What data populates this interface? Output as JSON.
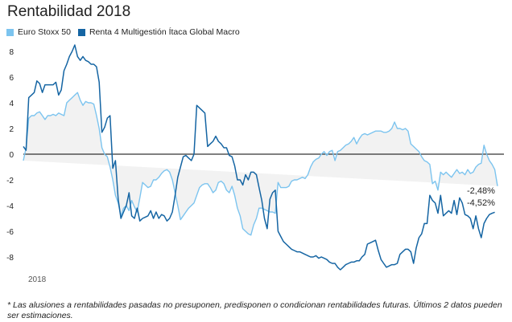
{
  "title": "Rentabilidad 2018",
  "footnote": "* Las alusiones a rentabilidades pasadas no presuponen, predisponen o condicionan rentabilidades futuras. Últimos 2 datos pueden ser estimaciones.",
  "chart_data": {
    "type": "line",
    "title": "Rentabilidad 2018",
    "xlabel": "",
    "ylabel": "",
    "x_tick_labels": [
      "2018"
    ],
    "ylim": [
      -9.5,
      9
    ],
    "yticks": [
      -8,
      -6,
      -4,
      -2,
      0,
      2,
      4,
      6,
      8
    ],
    "grid": false,
    "legend_position": "top-left",
    "fill_between_series": true,
    "end_labels": [
      "-2,48%",
      "-4,52%"
    ],
    "colors": {
      "fill": "#f2f2f2",
      "zero_line": "#000000",
      "text": "#222222"
    },
    "series": [
      {
        "name": "Euro Stoxx 50",
        "color": "#7cc4ef",
        "values": [
          -0.5,
          0.5,
          2.8,
          3.0,
          3.0,
          3.2,
          3.3,
          3.0,
          2.7,
          3.0,
          3.0,
          3.1,
          3.0,
          3.2,
          3.1,
          3.0,
          4.0,
          4.2,
          4.4,
          4.6,
          4.8,
          4.2,
          3.8,
          4.1,
          4.0,
          4.0,
          3.9,
          3.0,
          2.0,
          0.5,
          0.0,
          -0.2,
          -1.0,
          -2.0,
          -3.2,
          -3.8,
          -4.8,
          -4.2,
          -4.0,
          -4.4,
          -3.6,
          -4.1,
          -4.5,
          -3.4,
          -2.2,
          -2.4,
          -2.6,
          -2.5,
          -2.0,
          -2.0,
          -1.8,
          -1.5,
          -1.3,
          -1.2,
          -1.4,
          -2.0,
          -3.0,
          -4.0,
          -5.1,
          -4.8,
          -4.5,
          -4.2,
          -4.0,
          -3.8,
          -3.2,
          -2.6,
          -2.4,
          -2.3,
          -2.3,
          -2.6,
          -3.0,
          -2.8,
          -2.2,
          -2.1,
          -2.3,
          -2.8,
          -3.0,
          -2.5,
          -3.2,
          -4.2,
          -4.8,
          -5.8,
          -6.0,
          -6.2,
          -6.3,
          -5.5,
          -5.0,
          -4.2,
          -4.2,
          -4.3,
          -4.4,
          -4.5,
          -4.5,
          -4.6,
          -2.2,
          -2.6,
          -2.6,
          -2.6,
          -2.5,
          -2.1,
          -2.0,
          -2.0,
          -1.9,
          -1.8,
          -1.9,
          -1.6,
          -1.0,
          -0.6,
          -0.4,
          -0.3,
          0.0,
          0.2,
          -0.1,
          0.2,
          0.3,
          -0.5,
          0.2,
          0.3,
          0.5,
          0.7,
          0.8,
          1.0,
          1.3,
          0.8,
          1.2,
          1.5,
          1.6,
          1.5,
          1.6,
          1.7,
          1.8,
          1.8,
          1.8,
          1.7,
          1.7,
          1.8,
          2.0,
          2.5,
          2.0,
          2.0,
          1.9,
          2.0,
          1.8,
          0.8,
          0.6,
          0.4,
          0.2,
          -0.2,
          -0.5,
          -0.6,
          -0.8,
          -2.3,
          -2.1,
          -2.8,
          -1.4,
          -1.6,
          -1.4,
          -1.6,
          -1.8,
          -1.5,
          -1.2,
          -1.5,
          -1.4,
          -1.6,
          -1.2,
          -1.5,
          -1.4,
          -1.0,
          -0.8,
          -0.7,
          0.7,
          0.0,
          -0.5,
          -0.8,
          -1.2,
          -2.48
        ]
      },
      {
        "name": "Renta 4 Multigestión Ítaca Global Macro",
        "color": "#1565a3",
        "values": [
          0.6,
          0.3,
          4.4,
          4.6,
          4.8,
          5.7,
          5.5,
          4.8,
          5.4,
          5.4,
          5.4,
          5.4,
          5.6,
          4.6,
          5.0,
          6.5,
          7.0,
          7.6,
          8.0,
          8.5,
          7.6,
          7.3,
          7.6,
          7.3,
          7.2,
          7.0,
          7.0,
          6.8,
          5.6,
          1.7,
          2.1,
          2.8,
          3.0,
          -1.1,
          -0.5,
          -3.5,
          -5.0,
          -4.5,
          -4.0,
          -3.0,
          -4.8,
          -5.0,
          -4.2,
          -5.2,
          -5.0,
          -4.9,
          -4.8,
          -4.4,
          -5.0,
          -4.5,
          -5.0,
          -4.7,
          -4.8,
          -5.2,
          -5.0,
          -4.5,
          -3.2,
          -1.8,
          -1.0,
          -0.2,
          -0.1,
          -0.3,
          -0.5,
          0.0,
          3.8,
          3.6,
          3.4,
          3.2,
          0.6,
          0.8,
          1.0,
          1.4,
          1.0,
          0.8,
          0.5,
          0.5,
          -0.1,
          -0.2,
          -0.9,
          -2.0,
          -2.0,
          -2.4,
          -1.6,
          -2.0,
          -1.4,
          -1.4,
          -1.6,
          -2.6,
          -3.6,
          -5.0,
          -5.8,
          -3.5,
          -3.0,
          -2.8,
          -6.0,
          -6.4,
          -6.8,
          -7.0,
          -7.2,
          -7.4,
          -7.5,
          -7.6,
          -7.6,
          -7.7,
          -7.8,
          -7.9,
          -8.0,
          -8.0,
          -7.9,
          -8.1,
          -8.0,
          -8.1,
          -8.2,
          -8.4,
          -8.5,
          -8.5,
          -8.8,
          -9.0,
          -8.8,
          -8.6,
          -8.5,
          -8.4,
          -8.4,
          -8.3,
          -8.3,
          -8.0,
          -7.8,
          -7.0,
          -6.9,
          -6.8,
          -6.7,
          -7.5,
          -8.2,
          -8.5,
          -8.8,
          -8.7,
          -8.6,
          -8.6,
          -8.5,
          -7.8,
          -7.6,
          -7.4,
          -7.4,
          -7.6,
          -8.5,
          -7.3,
          -6.5,
          -6.2,
          -5.4,
          -5.4,
          -3.2,
          -3.6,
          -3.8,
          -4.6,
          -3.2,
          -4.8,
          -4.6,
          -4.4,
          -4.6,
          -3.6,
          -4.7,
          -3.4,
          -3.8,
          -4.7,
          -4.8,
          -5.0,
          -5.8,
          -4.8,
          -5.8,
          -6.5,
          -5.4,
          -5.0,
          -4.7,
          -4.6,
          -4.52
        ]
      }
    ]
  }
}
